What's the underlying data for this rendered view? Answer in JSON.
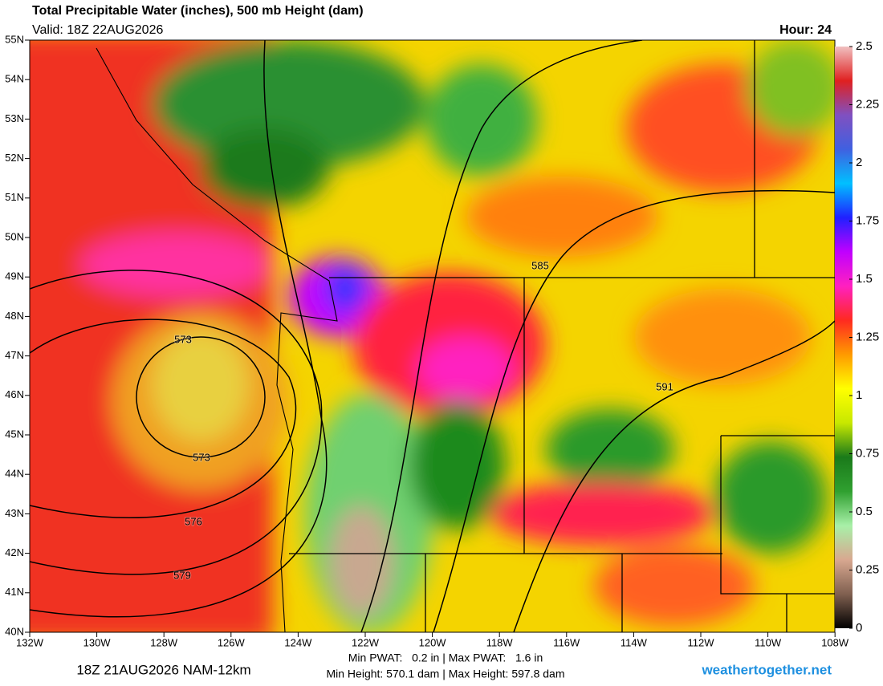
{
  "header": {
    "title": "Total Precipitable Water (inches), 500 mb Height (dam)",
    "valid": "Valid: 18Z 22AUG2026",
    "hour": "Hour: 24"
  },
  "map": {
    "lat_labels": [
      "55N",
      "54N",
      "53N",
      "52N",
      "51N",
      "50N",
      "49N",
      "48N",
      "47N",
      "46N",
      "45N",
      "44N",
      "43N",
      "42N",
      "41N",
      "40N"
    ],
    "lon_labels": [
      "132W",
      "130W",
      "128W",
      "126W",
      "124W",
      "122W",
      "120W",
      "118W",
      "116W",
      "114W",
      "112W",
      "110W",
      "108W"
    ],
    "contour_labels": [
      "573",
      "573",
      "576",
      "579",
      "585",
      "591"
    ]
  },
  "colorbar": {
    "lim": [
      0,
      2.5
    ],
    "ticks": [
      0,
      0.25,
      0.5,
      0.75,
      1,
      1.25,
      1.5,
      1.75,
      2,
      2.25,
      2.5
    ],
    "colors": [
      "#000000",
      "#806050",
      "#d8a890",
      "#a8f0a8",
      "#30a030",
      "#1a7a1a",
      "#c8e800",
      "#ffff00",
      "#ff9a00",
      "#ff2a20",
      "#ff20c0",
      "#c000ff",
      "#2020ff",
      "#00c0ff",
      "#4060e0",
      "#8050c0",
      "#e02020",
      "#f0c0c0"
    ]
  },
  "footer": {
    "run": "18Z 21AUG2026 NAM-12km",
    "pwat": "Min PWAT:   0.2 in | Max PWAT:   1.6 in",
    "height": "Min Height: 570.1 dam | Max Height: 597.8 dam",
    "site": "weathertogether.net"
  }
}
